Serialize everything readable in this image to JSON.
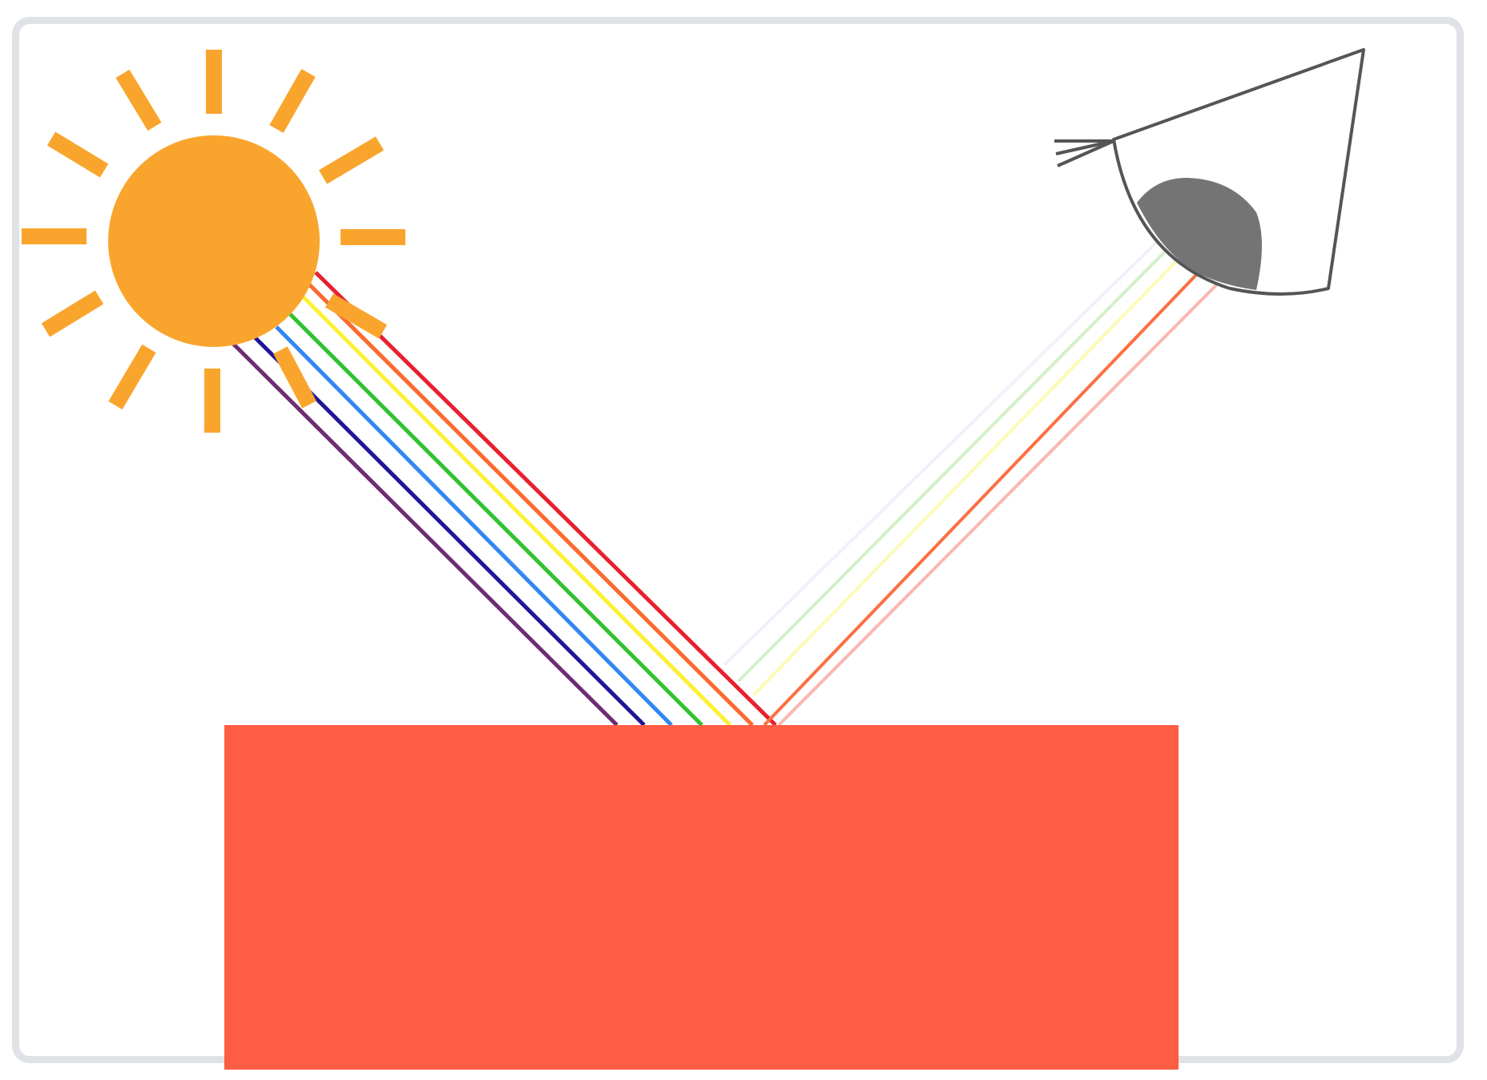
{
  "diagram": {
    "colors": {
      "frame_border": "#dfe2e6",
      "sun": "#f9a52d",
      "object": "#fc5d43",
      "eye_outline": "#555555",
      "pupil": "#747474"
    },
    "icons": [
      "sun-icon",
      "eye-icon"
    ],
    "incident_rays": [
      {
        "color": "#e8202f"
      },
      {
        "color": "#fb6a2e"
      },
      {
        "color": "#fef033"
      },
      {
        "color": "#31c231"
      },
      {
        "color": "#3287f2"
      },
      {
        "color": "#201696"
      },
      {
        "color": "#6d2d72"
      }
    ],
    "reflected_rays": [
      {
        "color": "#eef2fb"
      },
      {
        "color": "#d4efc9"
      },
      {
        "color": "#fcfbb7"
      },
      {
        "color": "#fb7043"
      },
      {
        "color": "#fbb7b2"
      }
    ]
  }
}
